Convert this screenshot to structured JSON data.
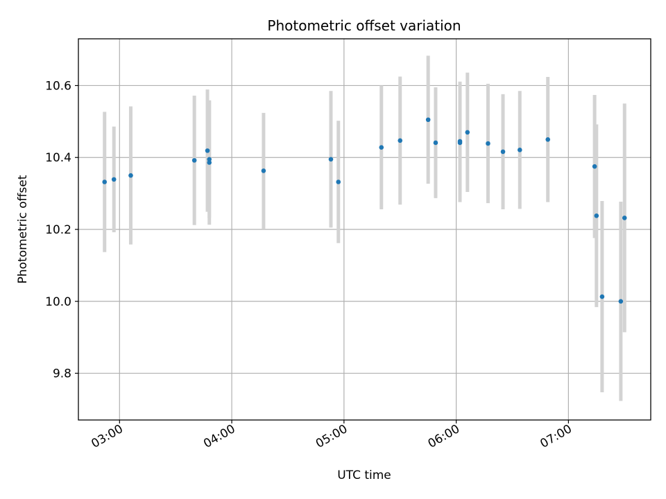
{
  "chart_data": {
    "type": "scatter",
    "title": "Photometric offset variation",
    "xlabel": "UTC time",
    "ylabel": "Photometric offset",
    "x_axis_type": "time",
    "xlim": [
      "02:38",
      "07:44"
    ],
    "ylim": [
      9.67,
      10.73
    ],
    "grid": true,
    "colors": {
      "point": "#1f77b4",
      "errorbar": "#d3d3d3",
      "grid": "#b0b0b0"
    },
    "x_ticks": [
      "03:00",
      "04:00",
      "05:00",
      "06:00",
      "07:00"
    ],
    "y_ticks": [
      9.8,
      10.0,
      10.2,
      10.4,
      10.6
    ],
    "y_tick_labels": [
      "9.8",
      "10.0",
      "10.2",
      "10.4",
      "10.6"
    ],
    "series": [
      {
        "points": [
          {
            "x": "02:52",
            "y": 10.332,
            "yerr": 0.195
          },
          {
            "x": "02:57",
            "y": 10.339,
            "yerr": 0.147
          },
          {
            "x": "03:06",
            "y": 10.35,
            "yerr": 0.192
          },
          {
            "x": "03:40",
            "y": 10.392,
            "yerr": 0.18
          },
          {
            "x": "03:47",
            "y": 10.419,
            "yerr": 0.17
          },
          {
            "x": "03:48",
            "y": 10.395,
            "yerr": 0.163
          },
          {
            "x": "03:48",
            "y": 10.386,
            "yerr": 0.173
          },
          {
            "x": "04:17",
            "y": 10.363,
            "yerr": 0.161
          },
          {
            "x": "04:53",
            "y": 10.395,
            "yerr": 0.19
          },
          {
            "x": "04:57",
            "y": 10.332,
            "yerr": 0.17
          },
          {
            "x": "05:20",
            "y": 10.428,
            "yerr": 0.172
          },
          {
            "x": "05:30",
            "y": 10.447,
            "yerr": 0.178
          },
          {
            "x": "05:45",
            "y": 10.505,
            "yerr": 0.178
          },
          {
            "x": "05:49",
            "y": 10.441,
            "yerr": 0.154
          },
          {
            "x": "06:02",
            "y": 10.441,
            "yerr": 0.165
          },
          {
            "x": "06:02",
            "y": 10.445,
            "yerr": 0.166
          },
          {
            "x": "06:06",
            "y": 10.47,
            "yerr": 0.166
          },
          {
            "x": "06:17",
            "y": 10.439,
            "yerr": 0.166
          },
          {
            "x": "06:25",
            "y": 10.416,
            "yerr": 0.16
          },
          {
            "x": "06:34",
            "y": 10.421,
            "yerr": 0.164
          },
          {
            "x": "06:49",
            "y": 10.45,
            "yerr": 0.174
          },
          {
            "x": "07:14",
            "y": 10.375,
            "yerr": 0.199
          },
          {
            "x": "07:15",
            "y": 10.238,
            "yerr": 0.254
          },
          {
            "x": "07:18",
            "y": 10.013,
            "yerr": 0.266
          },
          {
            "x": "07:28",
            "y": 10.0,
            "yerr": 0.277
          },
          {
            "x": "07:30",
            "y": 10.232,
            "yerr": 0.318
          }
        ]
      }
    ]
  }
}
